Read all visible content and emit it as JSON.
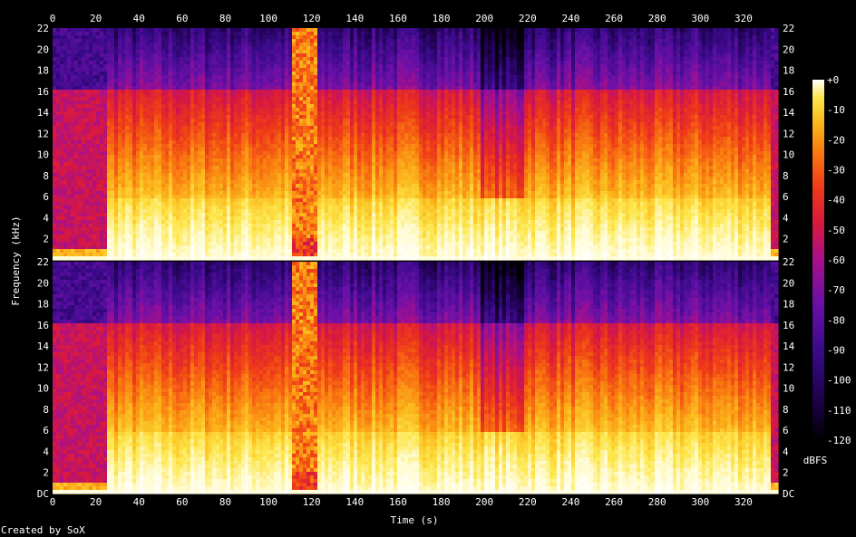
{
  "chart_data": {
    "type": "heatmap",
    "title": "",
    "xlabel": "Time (s)",
    "ylabel": "Frequency (kHz)",
    "xlim": [
      0,
      336
    ],
    "ylim": [
      0,
      22
    ],
    "x_ticks": [
      0,
      20,
      40,
      60,
      80,
      100,
      120,
      140,
      160,
      180,
      200,
      220,
      240,
      260,
      280,
      300,
      320
    ],
    "y_ticks": [
      2,
      4,
      6,
      8,
      10,
      12,
      14,
      16,
      18,
      20,
      22
    ],
    "y_zero_label": "DC",
    "channels": 2,
    "colorbar": {
      "label": "dBFS",
      "ticks": [
        "+0",
        "-10",
        "-20",
        "-30",
        "-40",
        "-50",
        "-60",
        "-70",
        "-80",
        "-90",
        "-100",
        "-110",
        "-120"
      ],
      "range": [
        -120,
        0
      ]
    },
    "colors": [
      "#000000",
      "#1a0044",
      "#3a0a8a",
      "#6a10a8",
      "#a8108a",
      "#d81840",
      "#ee3a18",
      "#f97a10",
      "#fbb81c",
      "#fde64a",
      "#fffbd0",
      "#ffffff"
    ]
  },
  "footer": {
    "credit": "Created by SoX"
  }
}
